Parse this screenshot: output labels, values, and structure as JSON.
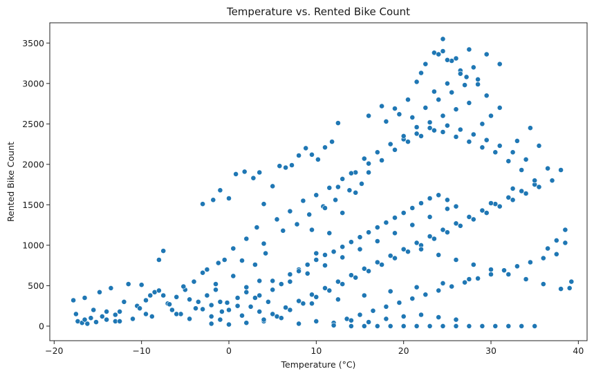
{
  "chart_data": {
    "type": "scatter",
    "title": "Temperature vs. Rented Bike Count",
    "xlabel": "Temperature (°C)",
    "ylabel": "Rented Bike Count",
    "xlim": [
      -20.5,
      41.0
    ],
    "ylim": [
      -180,
      3750
    ],
    "xticks": [
      -20,
      -10,
      0,
      10,
      20,
      30,
      40
    ],
    "xtick_labels": [
      "−20",
      "−10",
      "0",
      "10",
      "20",
      "30",
      "40"
    ],
    "yticks": [
      0,
      500,
      1000,
      1500,
      2000,
      2500,
      3000,
      3500
    ],
    "ytick_labels": [
      "0",
      "500",
      "1000",
      "1500",
      "2000",
      "2500",
      "3000",
      "3500"
    ],
    "grid": false,
    "legend": "none",
    "color": "#1f77b4",
    "series": [
      {
        "x": [
          -17.8,
          -17.5,
          -17.3,
          -16.8,
          -16.5,
          -16.2,
          -15.8,
          -15.5,
          -15.2,
          -14.8,
          -14.5,
          -14.0,
          -13.5,
          -13.0,
          -12.5,
          -12.0,
          -11.5,
          -11.0,
          -10.5,
          -10.0,
          -9.5,
          -9.0,
          -8.5,
          -8.0,
          -7.5,
          -7.0,
          -6.5,
          -6.0,
          -5.5,
          -5.0,
          -4.5,
          -4.0,
          -3.5,
          -3.0,
          -2.5,
          -2.0,
          -1.5,
          -1.0,
          -0.5,
          0.0,
          -16.5,
          -14.0,
          -13.0,
          -12.5,
          -11.0,
          -10.2,
          -9.5,
          -8.8,
          -8.0,
          -7.5,
          -6.8,
          -6.0,
          -5.2,
          -4.5,
          -3.8,
          -3.0,
          -2.5,
          -2.0,
          -1.5,
          -0.8,
          -0.2,
          0.5,
          1.0,
          1.5,
          2.0,
          2.5,
          3.0,
          3.5,
          4.0,
          4.5,
          -3.0,
          -1.8,
          -1.0,
          0.0,
          0.8,
          1.8,
          2.8,
          3.5,
          4.0,
          5.0,
          5.8,
          6.5,
          7.2,
          8.0,
          8.8,
          9.5,
          10.2,
          11.0,
          11.8,
          12.5,
          -1.2,
          0.5,
          2.0,
          3.2,
          4.2,
          5.5,
          6.2,
          7.0,
          7.8,
          8.5,
          9.2,
          10.0,
          10.8,
          11.5,
          12.2,
          13.0,
          13.8,
          14.5,
          15.2,
          16.0,
          2.0,
          3.5,
          5.0,
          6.0,
          7.0,
          8.0,
          9.0,
          10.0,
          11.0,
          12.0,
          13.0,
          14.0,
          15.0,
          16.0,
          17.0,
          18.0,
          19.0,
          20.0,
          21.0,
          22.0,
          23.0,
          24.0,
          25.0,
          26.0,
          4.0,
          5.5,
          7.0,
          8.5,
          10.0,
          11.5,
          13.0,
          14.5,
          16.0,
          17.5,
          19.0,
          20.5,
          22.0,
          23.5,
          25.0,
          26.5,
          28.0,
          29.5,
          31.0,
          32.5,
          34.0,
          35.5,
          37.0,
          38.5,
          5.0,
          6.5,
          8.0,
          9.5,
          11.0,
          12.5,
          14.0,
          15.5,
          17.0,
          18.5,
          20.0,
          21.5,
          23.0,
          24.5,
          26.0,
          27.5,
          29.0,
          30.5,
          32.0,
          33.5,
          35.0,
          36.5,
          8.0,
          9.5,
          11.0,
          12.5,
          14.0,
          15.5,
          17.0,
          18.5,
          20.0,
          21.5,
          23.0,
          24.5,
          26.0,
          27.5,
          29.0,
          30.5,
          32.0,
          33.5,
          35.0,
          10.0,
          11.5,
          13.0,
          14.5,
          16.0,
          17.5,
          19.0,
          20.5,
          22.0,
          23.5,
          25.0,
          26.5,
          28.0,
          29.5,
          31.0,
          32.5,
          34.0,
          12.0,
          13.5,
          15.0,
          16.5,
          18.0,
          19.5,
          21.0,
          22.5,
          24.0,
          25.5,
          27.0,
          28.5,
          30.0,
          31.5,
          33.0,
          34.5,
          36.0,
          37.5,
          14.0,
          15.5,
          17.0,
          18.5,
          20.0,
          21.5,
          23.0,
          24.5,
          26.0,
          27.5,
          29.0,
          30.5,
          32.0,
          33.5,
          35.0,
          16.0,
          17.5,
          19.0,
          20.5,
          22.0,
          23.5,
          25.0,
          26.5,
          28.0,
          29.5,
          31.0,
          18.0,
          19.5,
          21.0,
          22.5,
          24.0,
          25.5,
          27.0,
          28.5,
          30.0,
          20.0,
          21.5,
          23.0,
          24.5,
          26.0,
          27.5,
          29.0,
          21.5,
          22.5,
          23.5,
          24.5,
          25.5,
          26.5,
          27.5,
          24.0,
          24.5,
          25.0,
          26.0,
          27.2,
          28.5,
          29.5,
          31.0,
          30.0,
          32.5,
          33.0,
          34.5,
          35.5,
          36.5,
          37.5,
          38.0,
          38.5,
          39.0,
          39.2,
          0.0,
          2.0,
          4.0,
          6.0,
          8.0,
          10.0,
          12.0,
          14.0,
          16.0,
          18.0,
          20.0,
          22.0,
          24.0,
          26.0,
          1.0,
          3.0,
          5.0,
          7.0,
          9.0,
          11.0,
          13.0,
          15.0,
          17.0,
          19.0,
          21.0,
          23.0,
          25.0,
          -2.0,
          -1.0,
          1.5,
          3.5,
          6.5,
          9.5,
          12.5,
          15.5,
          18.5,
          21.5,
          24.5,
          27.5,
          22.0,
          24.0,
          26.0,
          28.0,
          30.0,
          32.0,
          34.0,
          36.0,
          38.0
        ],
        "y": [
          320,
          150,
          60,
          40,
          350,
          30,
          100,
          200,
          50,
          420,
          120,
          80,
          470,
          60,
          180,
          300,
          520,
          90,
          250,
          510,
          150,
          380,
          420,
          820,
          930,
          280,
          200,
          360,
          150,
          450,
          90,
          550,
          300,
          210,
          700,
          120,
          450,
          300,
          820,
          200,
          80,
          180,
          140,
          60,
          90,
          220,
          320,
          120,
          440,
          380,
          270,
          150,
          490,
          330,
          220,
          660,
          380,
          260,
          520,
          180,
          290,
          620,
          350,
          810,
          480,
          240,
          760,
          560,
          1020,
          300,
          1510,
          1560,
          1680,
          1580,
          1880,
          1910,
          1830,
          1900,
          1510,
          1730,
          1980,
          1960,
          1990,
          2110,
          2200,
          2120,
          2060,
          2210,
          2280,
          2510,
          780,
          960,
          1080,
          1220,
          900,
          1320,
          1180,
          1420,
          1260,
          1550,
          1380,
          1620,
          1480,
          1710,
          1560,
          1820,
          1680,
          1900,
          1760,
          2010,
          420,
          380,
          560,
          520,
          640,
          700,
          760,
          820,
          880,
          920,
          980,
          1040,
          1100,
          1160,
          1220,
          1280,
          1340,
          1400,
          1460,
          1520,
          1580,
          1620,
          1560,
          1480,
          60,
          120,
          200,
          280,
          360,
          440,
          520,
          600,
          680,
          760,
          840,
          920,
          1000,
          1080,
          1160,
          1240,
          1320,
          1400,
          1480,
          1560,
          1640,
          1720,
          1800,
          1030,
          150,
          230,
          310,
          390,
          470,
          550,
          630,
          710,
          790,
          870,
          950,
          1030,
          1110,
          1190,
          1270,
          1350,
          1430,
          1510,
          1590,
          1670,
          1750,
          960,
          680,
          1190,
          1460,
          1720,
          1890,
          2070,
          2150,
          2250,
          2310,
          2380,
          2450,
          2400,
          2340,
          2280,
          2210,
          2150,
          2040,
          1930,
          1800,
          900,
          1150,
          1400,
          1650,
          1900,
          2050,
          2180,
          2280,
          2350,
          2420,
          2480,
          2430,
          2370,
          2300,
          2230,
          2150,
          2060,
          40,
          90,
          140,
          190,
          240,
          290,
          340,
          390,
          440,
          490,
          540,
          590,
          640,
          690,
          740,
          790,
          840,
          890,
          0,
          0,
          0,
          0,
          0,
          0,
          0,
          0,
          0,
          0,
          0,
          0,
          0,
          0,
          0,
          2600,
          2720,
          2690,
          2800,
          3130,
          2900,
          3000,
          3160,
          3200,
          2850,
          2700,
          2530,
          2620,
          2580,
          2700,
          2800,
          2890,
          2980,
          3050,
          2600,
          2350,
          2460,
          2520,
          2600,
          2680,
          2760,
          2500,
          3020,
          3240,
          3380,
          3550,
          3280,
          3120,
          3420,
          3360,
          3400,
          3290,
          3310,
          3080,
          2990,
          3360,
          3240,
          1520,
          1700,
          2290,
          2450,
          2230,
          1950,
          1060,
          1930,
          1190,
          470,
          550,
          20,
          40,
          80,
          100,
          30,
          60,
          10,
          70,
          50,
          90,
          120,
          140,
          110,
          80,
          250,
          350,
          450,
          550,
          650,
          750,
          850,
          950,
          1050,
          1150,
          1250,
          1350,
          1450,
          30,
          80,
          130,
          180,
          230,
          280,
          330,
          380,
          430,
          480,
          530,
          580,
          950,
          880,
          820,
          760,
          700,
          640,
          580,
          520,
          460
        ]
      }
    ]
  }
}
